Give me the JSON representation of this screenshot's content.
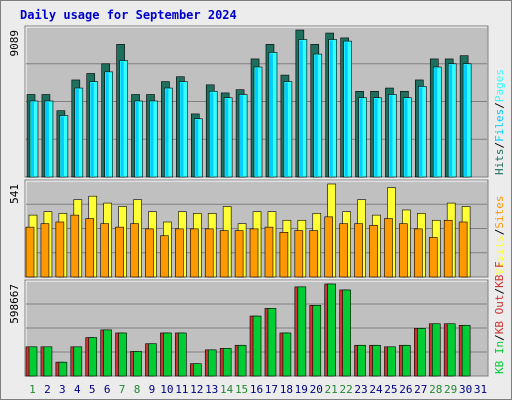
{
  "title": "Daily usage for September 2024",
  "colors": {
    "hits": "#1f6f5f",
    "files": "#00ccff",
    "pages": "#33ffff",
    "visits": "#ffff33",
    "sites": "#ff9900",
    "kb_in": "#00cc33",
    "kb_out": "#cc3333",
    "legend_sep": "#000000",
    "panel_bg": "#c0c0c0",
    "grid": "#808080",
    "weekend_label": "#228833",
    "weekday_label": "#000080"
  },
  "chart_data": {
    "type": "bar",
    "categories": [
      "1",
      "2",
      "3",
      "4",
      "5",
      "6",
      "7",
      "8",
      "9",
      "10",
      "11",
      "12",
      "13",
      "14",
      "15",
      "16",
      "17",
      "18",
      "19",
      "20",
      "21",
      "22",
      "23",
      "24",
      "25",
      "26",
      "27",
      "28",
      "29",
      "30",
      "31"
    ],
    "weekend_days": [
      "1",
      "7",
      "8",
      "14",
      "15",
      "21",
      "22",
      "28",
      "29"
    ],
    "panels": [
      {
        "id": "hits",
        "max_label": "9089",
        "ymax": 9089,
        "legend": [
          {
            "text": "Hits",
            "color": "#1f6f5f"
          },
          {
            "text": "/",
            "color": "#000000"
          },
          {
            "text": "Files",
            "color": "#00ccff"
          },
          {
            "text": "/",
            "color": "#000000"
          },
          {
            "text": "Pages",
            "color": "#33ffff"
          }
        ],
        "series": [
          {
            "name": "Hits",
            "values": [
              5100,
              5100,
              4100,
              6000,
              6400,
              7000,
              8200,
              5100,
              5100,
              5900,
              6200,
              3900,
              5700,
              5200,
              5400,
              7300,
              8200,
              6300,
              9089,
              8200,
              8900,
              8600,
              5300,
              5300,
              5500,
              5300,
              6000,
              7300,
              7300,
              7500,
              null
            ]
          },
          {
            "name": "Files",
            "values": [
              4700,
              4700,
              3800,
              5500,
              5900,
              6500,
              7200,
              4700,
              4700,
              5500,
              5900,
              3600,
              5300,
              4900,
              5100,
              6800,
              7700,
              5900,
              8500,
              7600,
              8500,
              8400,
              4900,
              4900,
              5100,
              4900,
              5600,
              6800,
              7000,
              7000,
              null
            ]
          },
          {
            "name": "Pages",
            "values": [
              4700,
              4700,
              3800,
              5500,
              5900,
              6500,
              7200,
              4700,
              4700,
              5500,
              5900,
              3600,
              5300,
              4900,
              5100,
              6800,
              7700,
              5900,
              8500,
              7600,
              8500,
              8400,
              4900,
              4900,
              5100,
              4900,
              5600,
              6800,
              7000,
              7000,
              null
            ]
          }
        ]
      },
      {
        "id": "visits",
        "max_label": "541",
        "ymax": 541,
        "legend": [
          {
            "text": "Visits",
            "color": "#ffff33"
          },
          {
            "text": "/",
            "color": "#000000"
          },
          {
            "text": "Sites",
            "color": "#ff9900"
          }
        ],
        "series": [
          {
            "name": "Visits",
            "values": [
              360,
              380,
              370,
              450,
              470,
              430,
              410,
              450,
              380,
              320,
              380,
              370,
              370,
              410,
              310,
              380,
              380,
              330,
              330,
              370,
              541,
              380,
              450,
              360,
              520,
              390,
              370,
              330,
              430,
              410,
              null
            ]
          },
          {
            "name": "Sites",
            "values": [
              290,
              310,
              320,
              360,
              340,
              310,
              290,
              310,
              280,
              240,
              280,
              280,
              280,
              270,
              270,
              280,
              290,
              260,
              270,
              270,
              350,
              310,
              310,
              300,
              340,
              310,
              280,
              230,
              330,
              320,
              null
            ]
          }
        ]
      },
      {
        "id": "kb",
        "max_label": "598667",
        "ymax": 598667,
        "legend": [
          {
            "text": "KB In",
            "color": "#00cc33"
          },
          {
            "text": "/",
            "color": "#000000"
          },
          {
            "text": "KB Out",
            "color": "#cc3333"
          },
          {
            "text": "/",
            "color": "#000000"
          },
          {
            "text": "KB F",
            "color": "#cc3333"
          }
        ],
        "series": [
          {
            "name": "KB Out",
            "values": [
              190000,
              190000,
              90000,
              190000,
              250000,
              300000,
              280000,
              160000,
              210000,
              280000,
              280000,
              80000,
              170000,
              180000,
              200000,
              390000,
              440000,
              280000,
              580000,
              460000,
              598667,
              560000,
              200000,
              200000,
              190000,
              200000,
              310000,
              340000,
              340000,
              330000,
              null
            ]
          },
          {
            "name": "KB In",
            "values": [
              190000,
              190000,
              90000,
              190000,
              250000,
              300000,
              280000,
              160000,
              210000,
              280000,
              280000,
              80000,
              170000,
              180000,
              200000,
              390000,
              440000,
              280000,
              580000,
              460000,
              598667,
              560000,
              200000,
              200000,
              190000,
              200000,
              310000,
              340000,
              340000,
              330000,
              null
            ]
          }
        ]
      }
    ]
  }
}
